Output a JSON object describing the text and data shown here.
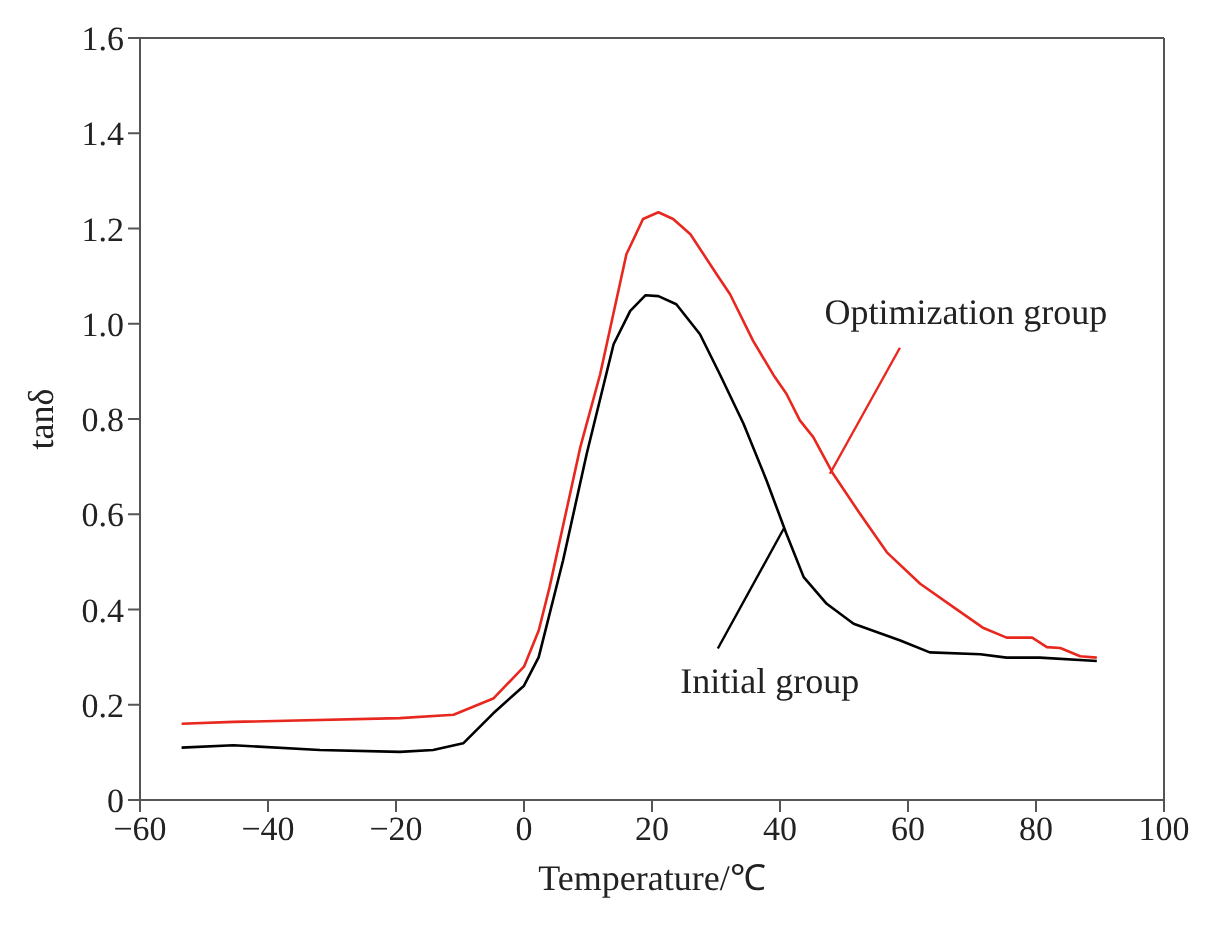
{
  "chart_data": {
    "type": "line",
    "xlabel": "Temperature/℃",
    "ylabel": "tanδ",
    "xlim": [
      -60,
      100
    ],
    "xticks": [
      {
        "value": -60,
        "label": "−60"
      },
      {
        "value": -40,
        "label": "−40"
      },
      {
        "value": -20,
        "label": "−20"
      },
      0,
      20,
      40,
      60,
      80,
      100
    ],
    "ylim": [
      0,
      1.6
    ],
    "yticks": [
      0,
      0.2,
      0.4,
      0.6,
      0.8,
      {
        "value": 1,
        "label": "1.0"
      },
      1.2,
      1.4,
      1.6
    ],
    "grid": false,
    "legend": false,
    "marker": "none",
    "line_style": "solid",
    "series": [
      {
        "color": "#e8281e",
        "x": [
          -53.5,
          -45.4,
          -19.4,
          -11,
          -4.8,
          0,
          2.3,
          4,
          8.8,
          11.9,
          16,
          18.6,
          21,
          23.3,
          26,
          30.1,
          32.2,
          35.8,
          39,
          41,
          43.1,
          45.2,
          48.3,
          52.5,
          56.7,
          61.9,
          67.1,
          71.8,
          75.4,
          79.4,
          81.7,
          83.8,
          86.9,
          89.5
        ],
        "values": [
          0.16,
          0.164,
          0.172,
          0.179,
          0.213,
          0.28,
          0.356,
          0.447,
          0.741,
          0.894,
          1.146,
          1.22,
          1.234,
          1.22,
          1.188,
          1.104,
          1.062,
          0.964,
          0.892,
          0.853,
          0.797,
          0.762,
          0.685,
          0.601,
          0.52,
          0.454,
          0.405,
          0.361,
          0.341,
          0.341,
          0.321,
          0.319,
          0.302,
          0.299
        ]
      },
      {
        "color": "#000000",
        "x": [
          -53.5,
          -45.4,
          -31.9,
          -19.4,
          -14.2,
          -9.5,
          -4.8,
          0,
          2.3,
          6.1,
          9.8,
          14,
          16.6,
          19,
          21,
          23.8,
          27.5,
          30.6,
          34.3,
          37.9,
          41,
          43.7,
          47.3,
          51.5,
          58.8,
          63.4,
          71.3,
          75.4,
          80.6,
          89.5
        ],
        "values": [
          0.11,
          0.115,
          0.105,
          0.101,
          0.105,
          0.119,
          0.182,
          0.24,
          0.3,
          0.503,
          0.727,
          0.957,
          1.027,
          1.06,
          1.058,
          1.041,
          0.978,
          0.894,
          0.79,
          0.671,
          0.559,
          0.468,
          0.412,
          0.37,
          0.335,
          0.31,
          0.306,
          0.299,
          0.299,
          0.292
        ]
      }
    ],
    "annotations": [
      {
        "text": "Optimization group",
        "x": 47.8,
        "y": 0.685
      },
      {
        "text": "Initial group",
        "x": 40.6,
        "y": 0.57
      }
    ]
  }
}
